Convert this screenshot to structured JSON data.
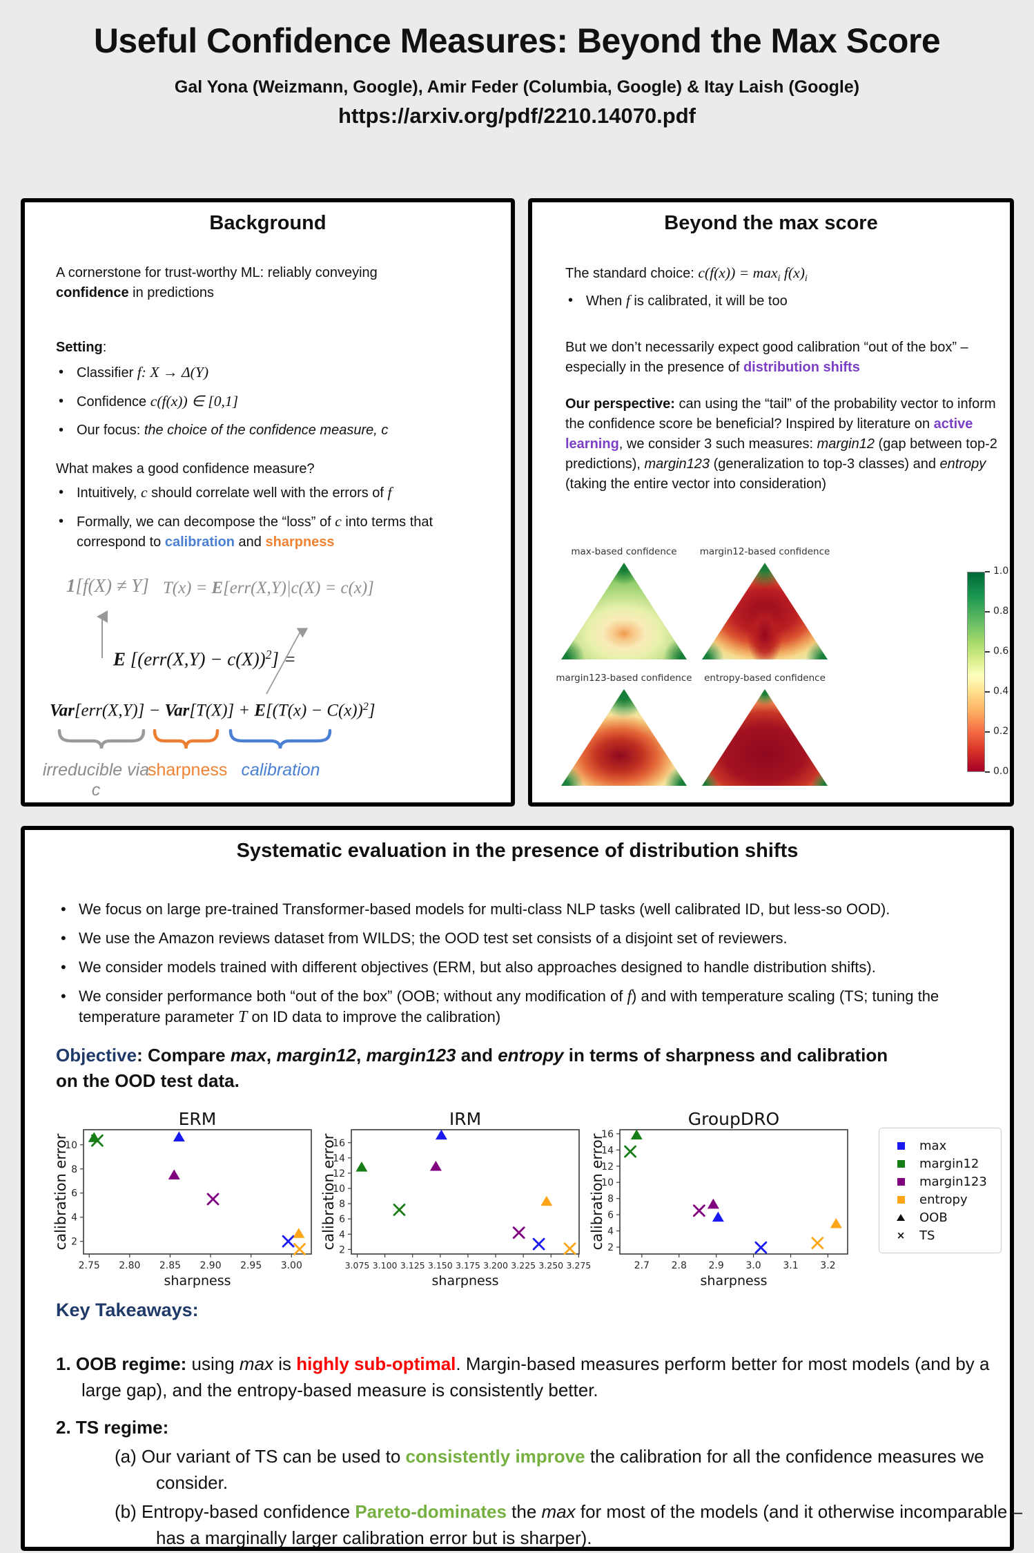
{
  "page": {
    "title": "Useful Confidence Measures: Beyond the Max Score",
    "authors": "Gal Yona (Weizmann, Google), Amir Feder (Columbia, Google) & Itay Laish (Google)",
    "url": "https://arxiv.org/pdf/2210.14070.pdf"
  },
  "background_panel": {
    "title": "Background",
    "intro": [
      {
        "t": "A cornerstone for trust-worthy ML: reliably conveying "
      },
      {
        "t": "confidence",
        "c": "b"
      },
      {
        "t": " in predictions"
      }
    ],
    "setting_label": [
      {
        "t": "Setting",
        "c": "b"
      },
      {
        "t": ":"
      }
    ],
    "setting_bullets": [
      [
        {
          "t": "Classifier "
        },
        {
          "t": "f",
          "c": "m"
        },
        {
          "t": ": ",
          "c": "m"
        },
        {
          "t": "X",
          "c": "m"
        },
        {
          "t": " → Δ(",
          "c": "m"
        },
        {
          "t": "Y",
          "c": "m"
        },
        {
          "t": ")",
          "c": "m"
        }
      ],
      [
        {
          "t": "Confidence "
        },
        {
          "t": "c(f(x))",
          "c": "m"
        },
        {
          "t": " ∈ [0,1]",
          "c": "m"
        }
      ],
      [
        {
          "t": "Our focus: "
        },
        {
          "t": "the choice of the confidence measure, c",
          "c": "i"
        }
      ]
    ],
    "question": "What makes a good confidence measure?",
    "question_bullets": [
      [
        {
          "t": "Intuitively, "
        },
        {
          "t": "c",
          "c": "m"
        },
        {
          "t": " should correlate well with the errors of "
        },
        {
          "t": "f",
          "c": "m"
        }
      ],
      [
        {
          "t": "Formally, we can decompose the “loss” of "
        },
        {
          "t": "c",
          "c": "m"
        },
        {
          "t": " into terms that correspond to "
        },
        {
          "t": "calibration",
          "c": "b blue"
        },
        {
          "t": " and "
        },
        {
          "t": "sharpness",
          "c": "b orange"
        }
      ]
    ],
    "formula_indicator": [
      {
        "t": "1",
        "c": "mb"
      },
      {
        "t": "[f(X) ≠ Y]",
        "c": "m"
      }
    ],
    "formula_T": [
      {
        "t": "T(x) = ",
        "c": "m"
      },
      {
        "t": "E",
        "c": "mb"
      },
      {
        "t": "[err(X,Y)|c(X) = c(x)]",
        "c": "m"
      }
    ],
    "formula_loss": [
      {
        "t": "E ",
        "c": "mb"
      },
      {
        "t": "[(err(X,Y) − c(X))",
        "c": "m"
      },
      {
        "t": "2",
        "c": "msup"
      },
      {
        "t": "] =",
        "c": "m"
      }
    ],
    "formula_decomp": [
      {
        "t": "Var",
        "c": "mb"
      },
      {
        "t": "[err(X,Y)] − ",
        "c": "m"
      },
      {
        "t": "Var",
        "c": "mb"
      },
      {
        "t": "[T(X)] + ",
        "c": "m"
      },
      {
        "t": "E",
        "c": "mb"
      },
      {
        "t": "[(T(x) − C(x))",
        "c": "m"
      },
      {
        "t": "2",
        "c": "msup"
      },
      {
        "t": "]",
        "c": "m"
      }
    ],
    "label_irreducible": "irreducible via c",
    "label_sharpness": "sharpness",
    "label_calibration": "calibration"
  },
  "beyond_panel": {
    "title": "Beyond the max score",
    "p1": [
      {
        "t": "The standard choice: "
      },
      {
        "t": "c(f(x)) = max",
        "c": "m"
      },
      {
        "t": "i",
        "c": "msub"
      },
      {
        "t": " f(x)",
        "c": "m"
      },
      {
        "t": "i",
        "c": "msub"
      }
    ],
    "b1": [
      {
        "t": "When "
      },
      {
        "t": "f",
        "c": "m"
      },
      {
        "t": " is calibrated, it will be too"
      }
    ],
    "p2": [
      {
        "t": "But we don’t necessarily expect good calibration “out of the box” – especially in the presence of "
      },
      {
        "t": "distribution shifts",
        "c": "b purple"
      }
    ],
    "p3": [
      {
        "t": "Our perspective:",
        "c": "b"
      },
      {
        "t": " can using the “tail” of the probability vector to inform the confidence score be beneficial? Inspired by literature on "
      },
      {
        "t": "active learning",
        "c": "b purple"
      },
      {
        "t": ", we consider 3 such measures: "
      },
      {
        "t": "margin12",
        "c": "i"
      },
      {
        "t": " (gap between top-2 predictions), "
      },
      {
        "t": "margin123",
        "c": "i"
      },
      {
        "t": " (generalization to top-3 classes) and "
      },
      {
        "t": "entropy",
        "c": "i"
      },
      {
        "t": " (taking the entire vector into consideration)"
      }
    ]
  },
  "eval_panel": {
    "title": "Systematic evaluation in the presence of distribution shifts",
    "bullets": [
      [
        {
          "t": "We focus on large pre-trained Transformer-based models for multi-class NLP tasks (well calibrated ID, but less-so OOD)."
        }
      ],
      [
        {
          "t": "We use the Amazon reviews dataset from WILDS; the OOD test set consists of a disjoint set of reviewers."
        }
      ],
      [
        {
          "t": "We consider models trained with different objectives (ERM, but also approaches designed to handle distribution shifts)."
        }
      ],
      [
        {
          "t": "We consider performance both “out of the box” (OOB; without any modification of "
        },
        {
          "t": "f",
          "c": "m"
        },
        {
          "t": ") and with temperature scaling (TS; tuning the temperature parameter "
        },
        {
          "t": "T",
          "c": "m"
        },
        {
          "t": " on ID data to improve the calibration)"
        }
      ]
    ],
    "objective": [
      {
        "t": "Objective",
        "c": "b navy"
      },
      {
        "t": ": Compare ",
        "c": "b"
      },
      {
        "t": "max",
        "c": "bi"
      },
      {
        "t": ", ",
        "c": "b"
      },
      {
        "t": "margin12",
        "c": "bi"
      },
      {
        "t": ", ",
        "c": "b"
      },
      {
        "t": "margin123",
        "c": "bi"
      },
      {
        "t": " and ",
        "c": "b"
      },
      {
        "t": "entropy",
        "c": "bi"
      },
      {
        "t": " in terms of sharpness and calibration on the OOD test data.",
        "c": "b"
      }
    ],
    "takeaways_title": "Key Takeaways:",
    "t1": [
      {
        "t": "1. ",
        "c": "b"
      },
      {
        "t": "OOB regime:",
        "c": "b"
      },
      {
        "t": " using "
      },
      {
        "t": "max",
        "c": "i"
      },
      {
        "t": " is "
      },
      {
        "t": "highly sub-optimal",
        "c": "b red"
      },
      {
        "t": ". Margin-based measures perform better for most models (and by a large gap), and the entropy-based measure is consistently better."
      }
    ],
    "t2": [
      {
        "t": "2. ",
        "c": "b"
      },
      {
        "t": "TS regime:",
        "c": "b"
      }
    ],
    "t2a": [
      {
        "t": "(a) Our variant of TS can be used to "
      },
      {
        "t": "consistently improve",
        "c": "b green"
      },
      {
        "t": " the calibration for all the confidence measures we consider."
      }
    ],
    "t2b": [
      {
        "t": "(b) Entropy-based confidence "
      },
      {
        "t": "Pareto-dominates",
        "c": "b green"
      },
      {
        "t": " the "
      },
      {
        "t": "max",
        "c": "i"
      },
      {
        "t": " for most of the models (and it otherwise incomparable – has a marginally larger calibration error but is sharper)."
      }
    ]
  },
  "chart_data": {
    "simplex_plots": {
      "type": "heatmap",
      "titles": [
        "max-based confidence",
        "margin12-based confidence",
        "margin123-based confidence",
        "entropy-based confidence"
      ],
      "colorbar_ticks": [
        "1.0",
        "0.8",
        "0.6",
        "0.4",
        "0.2",
        "0.0"
      ],
      "colormap": "RdYlGn",
      "description": "Confidence value over the 3-class probability simplex; green = high confidence (1.0), dark red = low (0.0)"
    },
    "series_colors": {
      "max": "#1a1af0",
      "margin12": "#177d17",
      "margin123": "#800080",
      "entropy": "#ffa517"
    },
    "legend": [
      {
        "label": "max",
        "type": "square",
        "color": "#1a1af0"
      },
      {
        "label": "margin12",
        "type": "square",
        "color": "#177d17"
      },
      {
        "label": "margin123",
        "type": "square",
        "color": "#800080"
      },
      {
        "label": "entropy",
        "type": "square",
        "color": "#ffa517"
      },
      {
        "label": "OOB",
        "type": "triangle",
        "color": "#111111"
      },
      {
        "label": "TS",
        "type": "x",
        "color": "#111111"
      }
    ],
    "scatter_plots": [
      {
        "title": "ERM",
        "xlabel": "sharpness",
        "ylabel": "calibration error",
        "xlim": [
          2.743,
          3.0245
        ],
        "ylim": [
          0.95,
          11.25
        ],
        "xticks": [
          {
            "v": 2.75,
            "l": "2.75"
          },
          {
            "v": 2.8,
            "l": "2.80"
          },
          {
            "v": 2.85,
            "l": "2.85"
          },
          {
            "v": 2.9,
            "l": "2.90"
          },
          {
            "v": 2.95,
            "l": "2.95"
          },
          {
            "v": 3.0,
            "l": "3.00"
          }
        ],
        "yticks": [
          {
            "v": 2,
            "l": "2"
          },
          {
            "v": 4,
            "l": "4"
          },
          {
            "v": 6,
            "l": "6"
          },
          {
            "v": 8,
            "l": "8"
          },
          {
            "v": 10,
            "l": "10"
          }
        ],
        "points": [
          {
            "series": "max",
            "regime": "OOB",
            "x": 2.861,
            "y": 10.65
          },
          {
            "series": "max",
            "regime": "TS",
            "x": 2.996,
            "y": 2.0
          },
          {
            "series": "margin12",
            "regime": "OOB",
            "x": 2.756,
            "y": 10.6
          },
          {
            "series": "margin12",
            "regime": "TS",
            "x": 2.76,
            "y": 10.35
          },
          {
            "series": "margin123",
            "regime": "OOB",
            "x": 2.855,
            "y": 7.5
          },
          {
            "series": "margin123",
            "regime": "TS",
            "x": 2.903,
            "y": 5.5
          },
          {
            "series": "entropy",
            "regime": "OOB",
            "x": 3.009,
            "y": 2.65
          },
          {
            "series": "entropy",
            "regime": "TS",
            "x": 3.01,
            "y": 1.35
          }
        ]
      },
      {
        "title": "IRM",
        "xlabel": "sharpness",
        "ylabel": "calibration error",
        "xlim": [
          3.0697,
          3.2754
        ],
        "ylim": [
          1.4,
          17.7
        ],
        "xticks": [
          {
            "v": 3.075,
            "l": "3.075"
          },
          {
            "v": 3.1,
            "l": "3.100"
          },
          {
            "v": 3.125,
            "l": "3.125"
          },
          {
            "v": 3.15,
            "l": "3.150"
          },
          {
            "v": 3.175,
            "l": "3.175"
          },
          {
            "v": 3.2,
            "l": "3.200"
          },
          {
            "v": 3.225,
            "l": "3.225"
          },
          {
            "v": 3.25,
            "l": "3.250"
          },
          {
            "v": 3.275,
            "l": "3.275"
          }
        ],
        "yticks": [
          {
            "v": 2,
            "l": "2"
          },
          {
            "v": 4,
            "l": "4"
          },
          {
            "v": 6,
            "l": "6"
          },
          {
            "v": 8,
            "l": "8"
          },
          {
            "v": 10,
            "l": "10"
          },
          {
            "v": 12,
            "l": "12"
          },
          {
            "v": 14,
            "l": "14"
          },
          {
            "v": 16,
            "l": "16"
          }
        ],
        "points": [
          {
            "series": "max",
            "regime": "OOB",
            "x": 3.151,
            "y": 17.0
          },
          {
            "series": "max",
            "regime": "TS",
            "x": 3.239,
            "y": 2.7
          },
          {
            "series": "margin12",
            "regime": "OOB",
            "x": 3.079,
            "y": 12.8
          },
          {
            "series": "margin12",
            "regime": "TS",
            "x": 3.113,
            "y": 7.2
          },
          {
            "series": "margin123",
            "regime": "OOB",
            "x": 3.146,
            "y": 12.9
          },
          {
            "series": "margin123",
            "regime": "TS",
            "x": 3.221,
            "y": 4.2
          },
          {
            "series": "entropy",
            "regime": "OOB",
            "x": 3.246,
            "y": 8.3
          },
          {
            "series": "entropy",
            "regime": "TS",
            "x": 3.267,
            "y": 2.1
          }
        ]
      },
      {
        "title": "GroupDRO",
        "xlabel": "sharpness",
        "ylabel": "calibration error",
        "xlim": [
          2.641,
          3.253
        ],
        "ylim": [
          1.15,
          16.5
        ],
        "xticks": [
          {
            "v": 2.7,
            "l": "2.7"
          },
          {
            "v": 2.8,
            "l": "2.8"
          },
          {
            "v": 2.9,
            "l": "2.9"
          },
          {
            "v": 3.0,
            "l": "3.0"
          },
          {
            "v": 3.1,
            "l": "3.1"
          },
          {
            "v": 3.2,
            "l": "3.2"
          }
        ],
        "yticks": [
          {
            "v": 2,
            "l": "2"
          },
          {
            "v": 4,
            "l": "4"
          },
          {
            "v": 6,
            "l": "6"
          },
          {
            "v": 8,
            "l": "8"
          },
          {
            "v": 10,
            "l": "10"
          },
          {
            "v": 12,
            "l": "12"
          },
          {
            "v": 14,
            "l": "14"
          },
          {
            "v": 16,
            "l": "16"
          }
        ],
        "points": [
          {
            "series": "max",
            "regime": "OOB",
            "x": 2.905,
            "y": 5.7
          },
          {
            "series": "max",
            "regime": "TS",
            "x": 3.02,
            "y": 1.95
          },
          {
            "series": "margin12",
            "regime": "OOB",
            "x": 2.686,
            "y": 15.85
          },
          {
            "series": "margin12",
            "regime": "TS",
            "x": 2.669,
            "y": 13.8
          },
          {
            "series": "margin123",
            "regime": "OOB",
            "x": 2.892,
            "y": 7.3
          },
          {
            "series": "margin123",
            "regime": "TS",
            "x": 2.854,
            "y": 6.5
          },
          {
            "series": "entropy",
            "regime": "OOB",
            "x": 3.222,
            "y": 4.9
          },
          {
            "series": "entropy",
            "regime": "TS",
            "x": 3.172,
            "y": 2.5
          }
        ]
      }
    ]
  }
}
